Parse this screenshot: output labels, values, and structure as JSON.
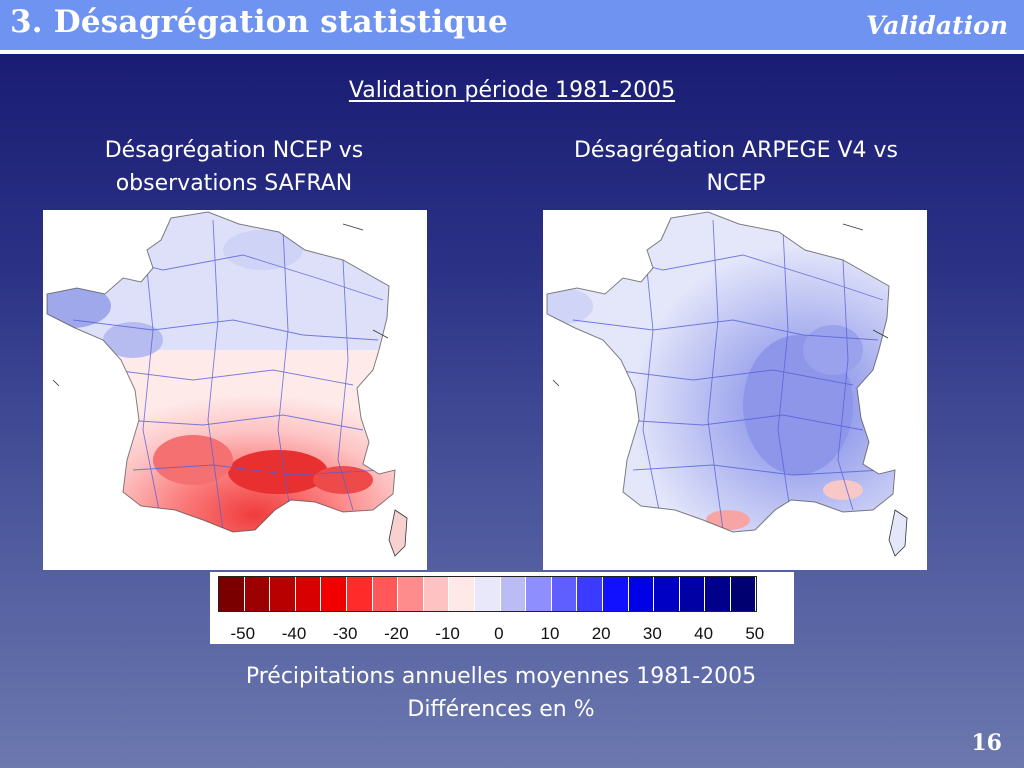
{
  "header": {
    "title": "3. Désagrégation statistique",
    "section": "Validation"
  },
  "subtitle": "Validation période 1981-2005",
  "panels": [
    {
      "title_line1": "Désagrégation NCEP vs",
      "title_line2": "observations SAFRAN",
      "pattern": "south-red"
    },
    {
      "title_line1": "Désagrégation ARPEGE V4 vs",
      "title_line2": "NCEP",
      "pattern": "east-blue"
    }
  ],
  "colorbar": {
    "colors": [
      "#7a0000",
      "#9c0000",
      "#b80000",
      "#d80000",
      "#f10000",
      "#ff2a2a",
      "#ff5858",
      "#ff8c8c",
      "#ffc2c2",
      "#ffe8e8",
      "#e8e8fa",
      "#bcbcf4",
      "#8e8eff",
      "#5f5fff",
      "#3b3bff",
      "#1111ff",
      "#0000e6",
      "#0000c4",
      "#0000a4",
      "#00008a",
      "#000070"
    ],
    "tick_labels": [
      "-50",
      "-40",
      "-30",
      "-20",
      "-10",
      "0",
      "10",
      "20",
      "30",
      "40",
      "50"
    ]
  },
  "caption": {
    "line1": "Précipitations annuelles moyennes 1981-2005",
    "line2": "Différences en %"
  },
  "page_number": "16"
}
